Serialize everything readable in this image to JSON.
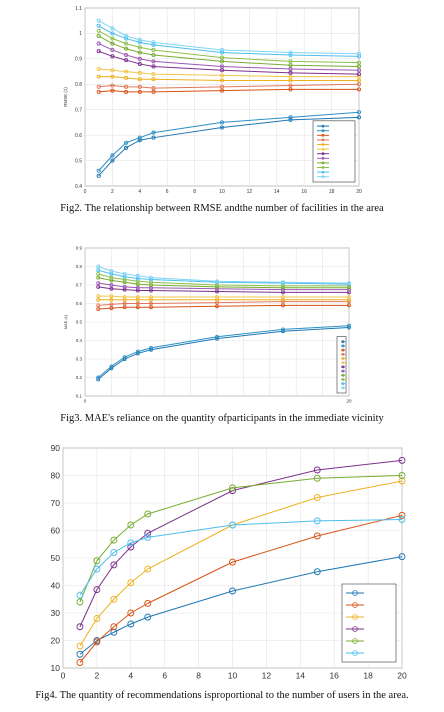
{
  "captions": {
    "fig2": "Fig2.  The  relationship  between  RMSE  andthe number of facilities in the area",
    "fig3": "Fig3. MAE's reliance on the quantity ofparticipants in the immediate vicinity",
    "fig4": "Fig4. The quantity of recommendations isproportional to the number of users in the area."
  },
  "chart_data": [
    {
      "type": "line",
      "ylabel": "RMSE (1)",
      "xlim": [
        0,
        20
      ],
      "ylim": [
        0.4,
        1.1
      ],
      "xticks": [
        "0",
        "2",
        "4",
        "6",
        "8",
        "10",
        "12",
        "14",
        "16",
        "18",
        "20"
      ],
      "yticks": [
        "0.4",
        "0.5",
        "0.6",
        "0.7",
        "0.8",
        "0.9",
        "1",
        "1.1"
      ],
      "grid": true,
      "legend": "bottom-right",
      "x": [
        1,
        2,
        3,
        4,
        5,
        10,
        15,
        20
      ],
      "series": [
        {
          "color": "#1f77b4",
          "values": [
            0.44,
            0.5,
            0.55,
            0.58,
            0.59,
            0.63,
            0.66,
            0.67
          ]
        },
        {
          "color": "#2a8fc4",
          "values": [
            0.46,
            0.52,
            0.57,
            0.59,
            0.61,
            0.65,
            0.67,
            0.69
          ]
        },
        {
          "color": "#d95319",
          "values": [
            0.77,
            0.775,
            0.77,
            0.77,
            0.77,
            0.775,
            0.78,
            0.78
          ]
        },
        {
          "color": "#e0775a",
          "values": [
            0.79,
            0.795,
            0.79,
            0.79,
            0.785,
            0.79,
            0.795,
            0.8
          ]
        },
        {
          "color": "#edb120",
          "values": [
            0.83,
            0.83,
            0.825,
            0.82,
            0.82,
            0.815,
            0.815,
            0.815
          ]
        },
        {
          "color": "#f0c54a",
          "values": [
            0.86,
            0.855,
            0.85,
            0.845,
            0.84,
            0.835,
            0.83,
            0.83
          ]
        },
        {
          "color": "#7e2f8e",
          "values": [
            0.93,
            0.91,
            0.895,
            0.88,
            0.87,
            0.855,
            0.845,
            0.84
          ]
        },
        {
          "color": "#9b59b6",
          "values": [
            0.96,
            0.935,
            0.915,
            0.9,
            0.89,
            0.87,
            0.86,
            0.855
          ]
        },
        {
          "color": "#77ac30",
          "values": [
            0.99,
            0.96,
            0.94,
            0.925,
            0.915,
            0.89,
            0.875,
            0.87
          ]
        },
        {
          "color": "#8cc04a",
          "values": [
            1.01,
            0.98,
            0.96,
            0.945,
            0.935,
            0.905,
            0.89,
            0.885
          ]
        },
        {
          "color": "#4dbeee",
          "values": [
            1.03,
            1.0,
            0.98,
            0.965,
            0.955,
            0.925,
            0.915,
            0.91
          ]
        },
        {
          "color": "#7fd3f5",
          "values": [
            1.05,
            1.02,
            0.99,
            0.975,
            0.965,
            0.935,
            0.925,
            0.92
          ]
        }
      ]
    },
    {
      "type": "line",
      "ylabel": "MAE (1)",
      "xlim": [
        0,
        20
      ],
      "ylim": [
        0.1,
        0.9
      ],
      "xticks": [
        "0",
        "",
        "",
        "",
        "",
        "",
        "",
        "",
        "",
        "",
        "20"
      ],
      "yticks": [
        "0.1",
        "0.2",
        "0.3",
        "0.4",
        "0.5",
        "0.6",
        "0.7",
        "0.8",
        "0.9"
      ],
      "grid": true,
      "legend": "bottom-right",
      "x": [
        1,
        2,
        3,
        4,
        5,
        10,
        15,
        20
      ],
      "series": [
        {
          "color": "#1f77b4",
          "values": [
            0.19,
            0.25,
            0.3,
            0.33,
            0.35,
            0.41,
            0.45,
            0.47
          ]
        },
        {
          "color": "#2a8fc4",
          "values": [
            0.2,
            0.26,
            0.31,
            0.34,
            0.36,
            0.42,
            0.46,
            0.48
          ]
        },
        {
          "color": "#d95319",
          "values": [
            0.57,
            0.575,
            0.58,
            0.58,
            0.58,
            0.585,
            0.59,
            0.59
          ]
        },
        {
          "color": "#e0775a",
          "values": [
            0.59,
            0.595,
            0.6,
            0.6,
            0.6,
            0.605,
            0.61,
            0.61
          ]
        },
        {
          "color": "#edb120",
          "values": [
            0.62,
            0.62,
            0.62,
            0.62,
            0.62,
            0.62,
            0.62,
            0.62
          ]
        },
        {
          "color": "#f0c54a",
          "values": [
            0.64,
            0.64,
            0.635,
            0.635,
            0.635,
            0.635,
            0.635,
            0.635
          ]
        },
        {
          "color": "#7e2f8e",
          "values": [
            0.69,
            0.68,
            0.675,
            0.67,
            0.67,
            0.665,
            0.66,
            0.66
          ]
        },
        {
          "color": "#9b59b6",
          "values": [
            0.71,
            0.7,
            0.69,
            0.685,
            0.685,
            0.68,
            0.675,
            0.675
          ]
        },
        {
          "color": "#77ac30",
          "values": [
            0.74,
            0.725,
            0.715,
            0.705,
            0.7,
            0.69,
            0.685,
            0.685
          ]
        },
        {
          "color": "#8cc04a",
          "values": [
            0.76,
            0.74,
            0.73,
            0.72,
            0.715,
            0.7,
            0.695,
            0.695
          ]
        },
        {
          "color": "#4dbeee",
          "values": [
            0.78,
            0.76,
            0.745,
            0.735,
            0.73,
            0.715,
            0.71,
            0.705
          ]
        },
        {
          "color": "#7fd3f5",
          "values": [
            0.8,
            0.775,
            0.76,
            0.75,
            0.74,
            0.72,
            0.715,
            0.71
          ]
        }
      ]
    },
    {
      "type": "line",
      "xlim": [
        0,
        20
      ],
      "ylim": [
        10,
        90
      ],
      "xticks": [
        "0",
        "2",
        "4",
        "6",
        "8",
        "10",
        "12",
        "14",
        "16",
        "18",
        "20"
      ],
      "yticks": [
        "10",
        "20",
        "30",
        "40",
        "50",
        "60",
        "70",
        "80",
        "90"
      ],
      "grid": true,
      "legend": "bottom-right",
      "x": [
        1,
        2,
        3,
        4,
        5,
        10,
        15,
        20
      ],
      "series": [
        {
          "color": "#1f77b4",
          "values": [
            15,
            20,
            23,
            26,
            28.5,
            38,
            45,
            50.5
          ]
        },
        {
          "color": "#d95319",
          "values": [
            12,
            19.5,
            25,
            30,
            33.5,
            48.5,
            58,
            65.5
          ]
        },
        {
          "color": "#edb120",
          "values": [
            18,
            28,
            35,
            41,
            46,
            62,
            72,
            78
          ]
        },
        {
          "color": "#7e2f8e",
          "values": [
            25,
            38.5,
            47.5,
            54,
            59,
            74.5,
            82,
            85.5
          ]
        },
        {
          "color": "#77ac30",
          "values": [
            34,
            49,
            56.5,
            62,
            66,
            75.5,
            79,
            80
          ]
        },
        {
          "color": "#4dbeee",
          "values": [
            36.5,
            46,
            52,
            55.5,
            57.5,
            62,
            63.5,
            64
          ]
        }
      ]
    }
  ]
}
